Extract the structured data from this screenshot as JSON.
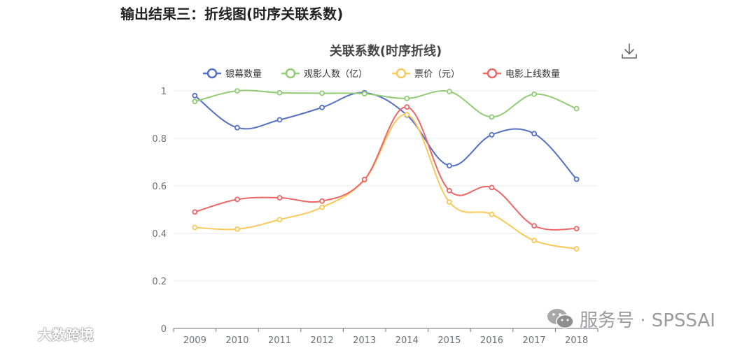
{
  "page_heading": "输出结果三：折线图(时序关联系数)",
  "watermark_right": "服务号 · SPSSAI",
  "watermark_left": "大数跨境",
  "icons": {
    "download": "download-icon",
    "wechat": "wechat-icon",
    "logo": "brand-logo-icon"
  },
  "chart_data": {
    "type": "line",
    "title": "关联系数(时序折线)",
    "x": [
      "2009",
      "2010",
      "2011",
      "2012",
      "2013",
      "2014",
      "2015",
      "2016",
      "2017",
      "2018"
    ],
    "ylim": [
      0,
      1
    ],
    "yticks": [
      "0",
      "0.2",
      "0.4",
      "0.6",
      "0.8",
      "1"
    ],
    "grid": true,
    "legend_position": "top",
    "series": [
      {
        "name": "银幕数量",
        "color": "#5470c6",
        "values": [
          0.98,
          0.845,
          0.878,
          0.93,
          0.992,
          0.898,
          0.685,
          0.815,
          0.82,
          0.628
        ]
      },
      {
        "name": "观影人数（亿）",
        "color": "#91cc75",
        "values": [
          0.955,
          1.0,
          0.992,
          0.99,
          0.988,
          0.968,
          0.997,
          0.89,
          0.986,
          0.925
        ]
      },
      {
        "name": "票价（元）",
        "color": "#fac858",
        "values": [
          0.425,
          0.418,
          0.458,
          0.51,
          0.625,
          0.9,
          0.532,
          0.48,
          0.37,
          0.335
        ]
      },
      {
        "name": "电影上线数量",
        "color": "#ee6666",
        "values": [
          0.49,
          0.543,
          0.55,
          0.536,
          0.627,
          0.932,
          0.58,
          0.593,
          0.432,
          0.42
        ]
      }
    ]
  }
}
